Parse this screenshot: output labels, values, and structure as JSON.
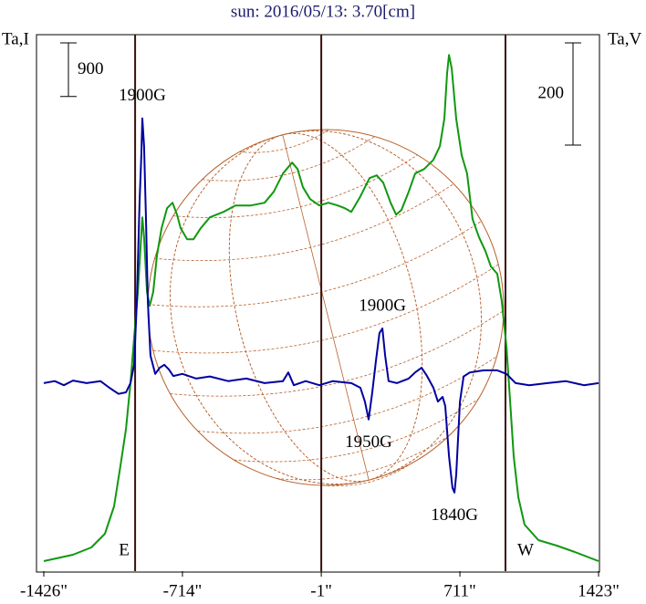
{
  "chart_data": {
    "type": "line",
    "title": "sun: 2016/05/13: 3.70[cm]",
    "ylabel": "Ta,I",
    "y2label": "Ta,V",
    "xlim": [
      -1426,
      1423
    ],
    "xticks": [
      {
        "value": -1426,
        "label": "-1426\""
      },
      {
        "value": -714,
        "label": "-714\""
      },
      {
        "value": -1,
        "label": "-1\""
      },
      {
        "value": 711,
        "label": "711\""
      },
      {
        "value": 1423,
        "label": "1423\""
      }
    ],
    "ylim": [
      0,
      9000
    ],
    "y2lim": [
      -368,
      682
    ],
    "scale_bars": [
      {
        "label": 900
      },
      {
        "label": 200,
        "axis": "y2"
      }
    ],
    "markers": [
      {
        "x": -957,
        "label": "E"
      },
      {
        "x": -1
      },
      {
        "x": 945,
        "label": "W"
      }
    ],
    "series": [
      {
        "color": "#109810",
        "x": [
          -1426,
          -1276,
          -1182,
          -1112,
          -1065,
          -1032,
          -1004,
          -981,
          -962,
          -943,
          -929,
          -920,
          -911,
          -896,
          -882,
          -864,
          -845,
          -821,
          -793,
          -765,
          -742,
          -723,
          -690,
          -657,
          -620,
          -573,
          -503,
          -442,
          -362,
          -292,
          -245,
          -198,
          -151,
          -123,
          -95,
          -58,
          -11,
          36,
          83,
          120,
          153,
          200,
          247,
          284,
          317,
          355,
          383,
          411,
          448,
          481,
          528,
          575,
          608,
          631,
          645,
          655,
          669,
          692,
          720,
          748,
          776,
          809,
          842,
          870,
          903,
          926,
          950,
          969,
          987,
          1011,
          1043,
          1114,
          1208,
          1301,
          1423
        ],
        "values": [
          168,
          275,
          398,
          627,
          1086,
          1775,
          2387,
          3152,
          3917,
          4682,
          5447,
          5936,
          5600,
          4682,
          4452,
          4682,
          5294,
          5753,
          6089,
          6181,
          5982,
          5753,
          5569,
          5569,
          5753,
          5936,
          6028,
          6135,
          6135,
          6181,
          6365,
          6671,
          6854,
          6747,
          6441,
          6242,
          6135,
          6181,
          6135,
          6089,
          6028,
          6288,
          6594,
          6640,
          6518,
          6181,
          5982,
          6059,
          6365,
          6671,
          6747,
          6900,
          7130,
          7589,
          8354,
          8660,
          8430,
          7589,
          6977,
          6671,
          5906,
          5600,
          5370,
          5110,
          4988,
          4529,
          3764,
          2846,
          1928,
          1239,
          780,
          520,
          428,
          321,
          168
        ]
      },
      {
        "color": "#0000a0",
        "axis": "y2",
        "x": [
          -1426,
          -1370,
          -1323,
          -1276,
          -1206,
          -1135,
          -1089,
          -1042,
          -1004,
          -981,
          -962,
          -948,
          -934,
          -925,
          -920,
          -911,
          -901,
          -892,
          -878,
          -854,
          -831,
          -807,
          -784,
          -761,
          -714,
          -643,
          -573,
          -479,
          -386,
          -292,
          -198,
          -170,
          -142,
          -81,
          -11,
          59,
          153,
          200,
          223,
          242,
          261,
          280,
          298,
          313,
          327,
          345,
          387,
          448,
          481,
          514,
          542,
          575,
          598,
          622,
          636,
          655,
          673,
          683,
          692,
          711,
          730,
          762,
          833,
          903,
          950,
          997,
          1067,
          1161,
          1254,
          1348,
          1423
        ],
        "values": [
          0,
          4,
          -4,
          5,
          0,
          4,
          -9,
          -21,
          -18,
          0,
          36,
          161,
          357,
          446,
          518,
          464,
          321,
          161,
          54,
          18,
          30,
          36,
          27,
          14,
          18,
          9,
          13,
          4,
          9,
          0,
          4,
          21,
          -4,
          4,
          -4,
          4,
          0,
          -9,
          -36,
          -71,
          -18,
          45,
          98,
          107,
          54,
          4,
          0,
          9,
          21,
          30,
          14,
          -9,
          -36,
          -27,
          -45,
          -143,
          -205,
          -214,
          -179,
          -36,
          13,
          21,
          25,
          25,
          18,
          0,
          -4,
          0,
          4,
          -4,
          0
        ]
      }
    ],
    "annotations": [
      {
        "text": "1900G",
        "x": -920,
        "y": 518,
        "axis": "y2"
      },
      {
        "text": "1900G",
        "x": 313,
        "y": 107,
        "axis": "y2"
      },
      {
        "text": "1950G",
        "x": 242,
        "y": -71,
        "axis": "y2"
      },
      {
        "text": "1840G",
        "x": 683,
        "y": -214,
        "axis": "y2"
      }
    ]
  }
}
